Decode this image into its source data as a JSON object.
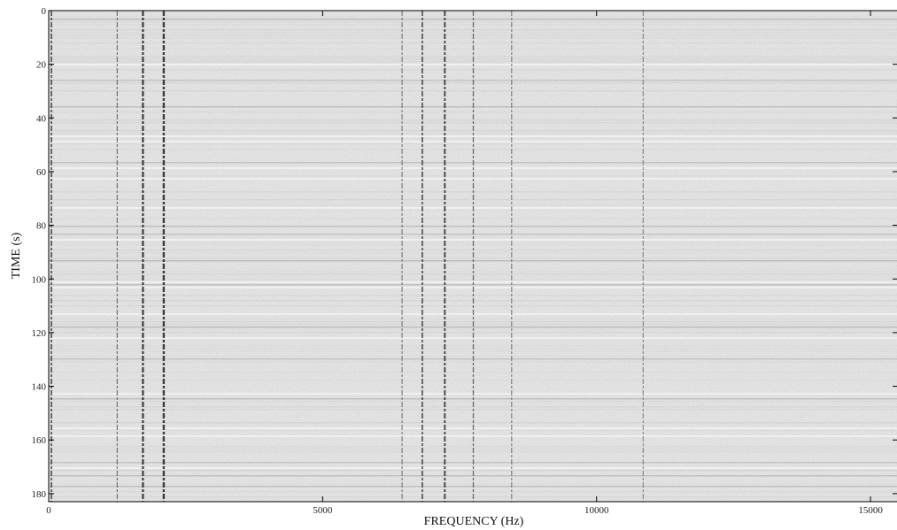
{
  "chart_data": {
    "type": "heatmap",
    "title": "",
    "xlabel": "FREQUENCY (Hz)",
    "ylabel": "TIME (s)",
    "xlim": [
      0,
      15500
    ],
    "ylim": [
      0,
      183
    ],
    "y_inverted": true,
    "xticks": [
      0,
      5000,
      10000,
      15000
    ],
    "yticks": [
      0,
      20,
      40,
      60,
      80,
      100,
      120,
      140,
      160,
      180
    ],
    "colormap": "grayscale (light background, dark = high magnitude)",
    "dominant_frequency_lines_hz": [
      50,
      1250,
      1720,
      2100,
      6450,
      6820,
      7230,
      7750,
      8450,
      10850
    ]
  }
}
